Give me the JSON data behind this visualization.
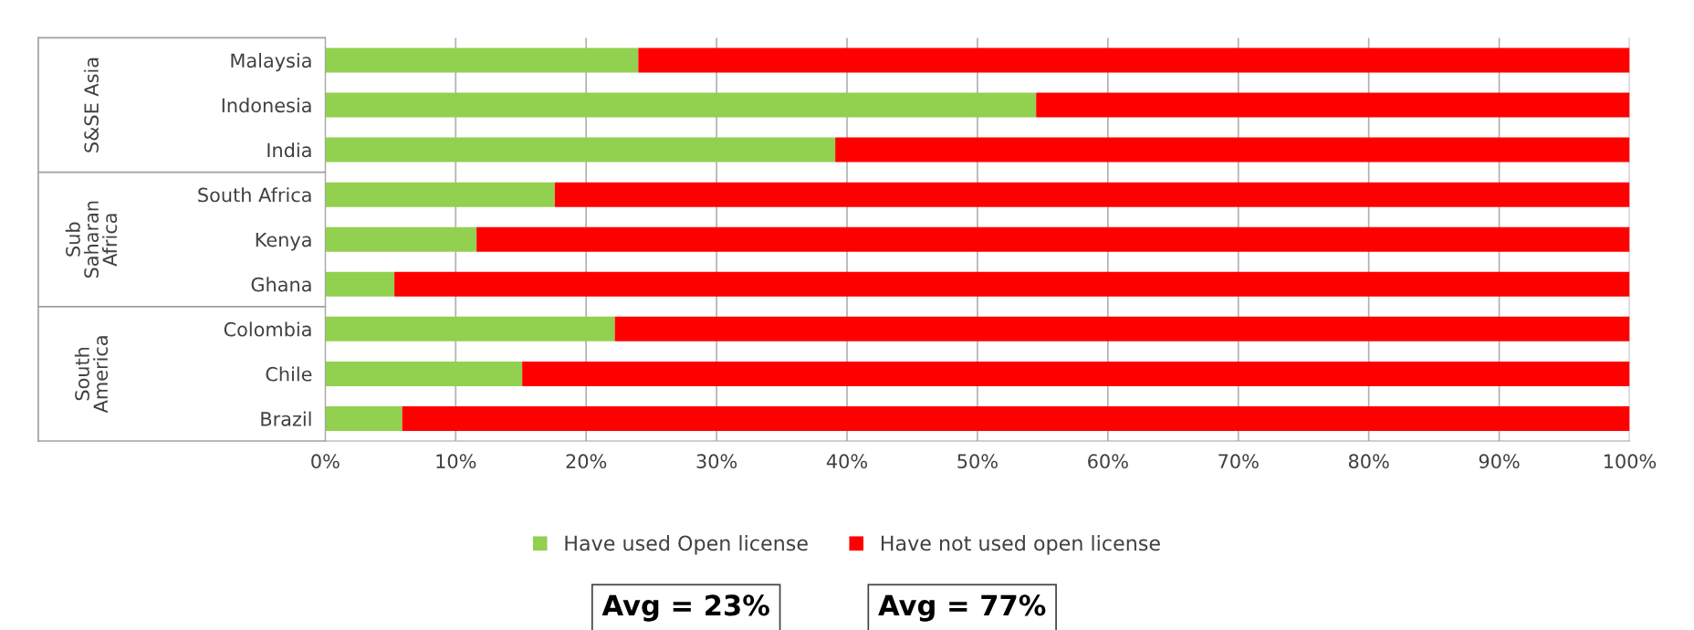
{
  "chart_data": {
    "type": "bar",
    "orientation": "horizontal",
    "stacked": true,
    "categories": [
      "Malaysia",
      "Indonesia",
      "India",
      "South Africa",
      "Kenya",
      "Ghana",
      "Colombia",
      "Chile",
      "Brazil"
    ],
    "series": [
      {
        "name": "Have used Open license",
        "color": "#92d050",
        "values": [
          24.0,
          54.5,
          39.1,
          17.6,
          11.6,
          5.3,
          22.2,
          15.1,
          5.9
        ]
      },
      {
        "name": "Have not used open license",
        "color": "#ff0000",
        "values": [
          76.0,
          45.5,
          60.9,
          82.4,
          88.4,
          94.7,
          77.8,
          84.9,
          94.1
        ]
      }
    ],
    "xlim": [
      0,
      100
    ],
    "xticks": [
      {
        "value": 0,
        "label": "0%"
      },
      {
        "value": 10,
        "label": "10%"
      },
      {
        "value": 20,
        "label": "20%"
      },
      {
        "value": 30,
        "label": "30%"
      },
      {
        "value": 40,
        "label": "40%"
      },
      {
        "value": 50,
        "label": "50%"
      },
      {
        "value": 60,
        "label": "60%"
      },
      {
        "value": 70,
        "label": "70%"
      },
      {
        "value": 80,
        "label": "80%"
      },
      {
        "value": 90,
        "label": "90%"
      },
      {
        "value": 100,
        "label": "100%"
      }
    ],
    "grid": "x",
    "legend": "bottom",
    "annotations": [
      "S&SE Asia",
      "Sub\nSaharan\nAfrica",
      "South\nAmerica",
      "Avg = 23%",
      "Avg = 77%"
    ]
  }
}
